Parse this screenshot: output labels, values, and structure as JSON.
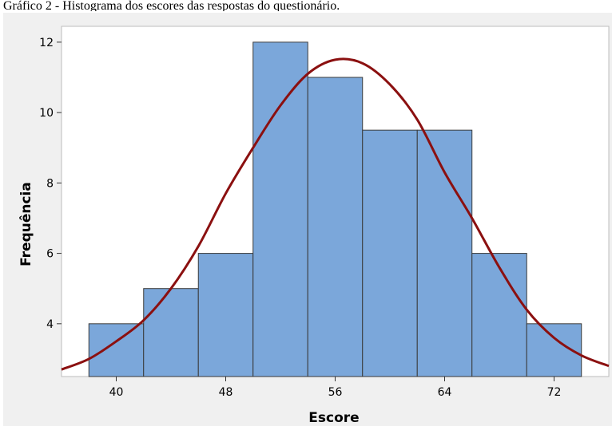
{
  "caption": "Gráfico 2 - Histograma dos escores das respostas do questionário.",
  "colors": {
    "bar_fill": "#7ba7da",
    "bar_stroke": "#3a3a3a",
    "curve": "#8b1010",
    "plot_bg": "#ffffff",
    "frame_bg": "#f0f0f0"
  },
  "chart_data": {
    "type": "bar",
    "subtype": "histogram-with-normal-fit",
    "xlabel": "Escore",
    "ylabel": "Frequência",
    "bin_width": 4,
    "bins": [
      {
        "start": 38,
        "end": 42,
        "count": 4
      },
      {
        "start": 42,
        "end": 46,
        "count": 5
      },
      {
        "start": 46,
        "end": 50,
        "count": 6
      },
      {
        "start": 50,
        "end": 54,
        "count": 12
      },
      {
        "start": 54,
        "end": 58,
        "count": 11
      },
      {
        "start": 58,
        "end": 62,
        "count": 9.5
      },
      {
        "start": 62,
        "end": 66,
        "count": 9.5
      },
      {
        "start": 66,
        "end": 70,
        "count": 6
      },
      {
        "start": 70,
        "end": 74,
        "count": 4
      }
    ],
    "fit_curve": {
      "x": [
        36,
        38,
        40,
        42,
        44,
        46,
        48,
        50,
        52,
        54,
        56,
        58,
        60,
        62,
        64,
        66,
        68,
        70,
        72,
        74,
        76
      ],
      "y": [
        2.7,
        3.0,
        3.5,
        4.1,
        5.0,
        6.2,
        7.7,
        9.0,
        10.2,
        11.1,
        11.5,
        11.4,
        10.8,
        9.8,
        8.3,
        7.0,
        5.6,
        4.4,
        3.6,
        3.1,
        2.8
      ]
    },
    "xticks": [
      40,
      48,
      56,
      64,
      72
    ],
    "yticks": [
      4,
      6,
      8,
      10,
      12
    ],
    "xlim": [
      36,
      76
    ],
    "ylim": [
      2.5,
      12.45
    ],
    "grid": false,
    "legend": "none"
  }
}
